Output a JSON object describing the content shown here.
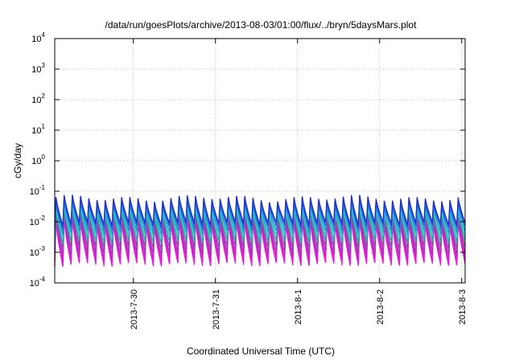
{
  "chart_data": {
    "type": "line",
    "title": "/data/run/goesPlots/archive/2013-08-03/01:00/flux/../bryn/5daysMars.plot",
    "xlabel": "Coordinated Universal Time (UTC)",
    "ylabel": "cGy/day",
    "yscale": "log",
    "ylim": [
      0.0001,
      10000
    ],
    "yticks": [
      {
        "base": "10",
        "exp": "-4",
        "value": 0.0001
      },
      {
        "base": "10",
        "exp": "-3",
        "value": 0.001
      },
      {
        "base": "10",
        "exp": "-2",
        "value": 0.01
      },
      {
        "base": "10",
        "exp": "-1",
        "value": 0.1
      },
      {
        "base": "10",
        "exp": "0",
        "value": 1
      },
      {
        "base": "10",
        "exp": "1",
        "value": 10
      },
      {
        "base": "10",
        "exp": "2",
        "value": 100
      },
      {
        "base": "10",
        "exp": "3",
        "value": 1000
      },
      {
        "base": "10",
        "exp": "4",
        "value": 10000
      }
    ],
    "xlim": [
      "2013-07-29T01:00",
      "2013-08-03T01:00"
    ],
    "xticks": [
      "2013-7-30",
      "2013-7-31",
      "2013-8-1",
      "2013-8-2",
      "2013-8-3"
    ],
    "grid": true,
    "pulses_per_day": 10,
    "series": [
      {
        "color": "#ee11dd",
        "peak": 0.01,
        "trough": 0.0004
      },
      {
        "color": "#cc22cc",
        "peak": 0.013,
        "trough": 0.0006
      },
      {
        "color": "#aa33bb",
        "peak": 0.016,
        "trough": 0.0009
      },
      {
        "color": "#9944aa",
        "peak": 0.02,
        "trough": 0.0014
      },
      {
        "color": "#22aaaa",
        "peak": 0.024,
        "trough": 0.0022
      },
      {
        "color": "#33cccc",
        "peak": 0.03,
        "trough": 0.0032
      },
      {
        "color": "#1199cc",
        "peak": 0.038,
        "trough": 0.0045
      },
      {
        "color": "#2255dd",
        "peak": 0.05,
        "trough": 0.0065
      },
      {
        "color": "#2233cc",
        "peak": 0.06,
        "trough": 0.0085
      }
    ]
  }
}
